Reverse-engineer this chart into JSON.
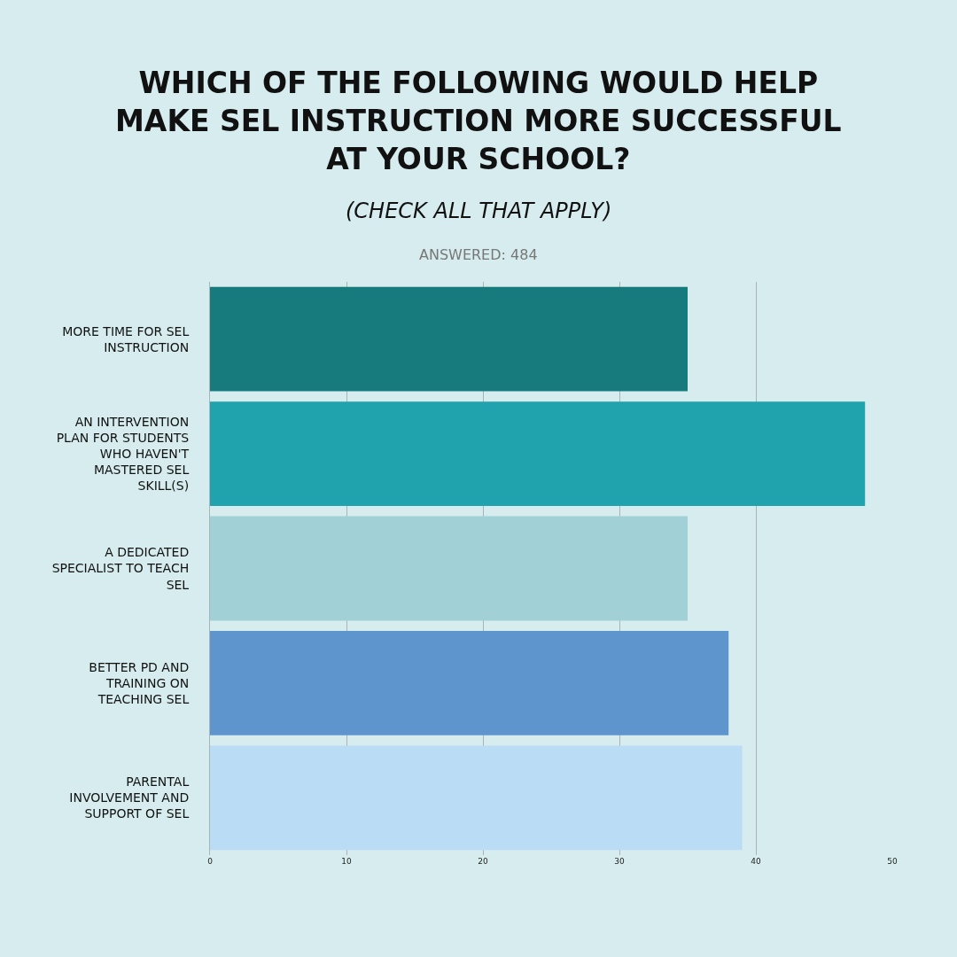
{
  "chart_data": {
    "type": "bar",
    "orientation": "horizontal",
    "title": "WHICH OF THE FOLLOWING WOULD HELP MAKE SEL INSTRUCTION MORE SUCCESSFUL AT YOUR SCHOOL?",
    "subtitle": "(CHECK ALL THAT APPLY)",
    "annotations": [
      "ANSWERED: 484"
    ],
    "categories": [
      "MORE TIME FOR SEL INSTRUCTION",
      "AN INTERVENTION PLAN FOR STUDENTS WHO HAVEN'T MASTERED SEL SKILL(S)",
      "A DEDICATED SPECIALIST TO TEACH SEL",
      "BETTER PD AND TRAINING ON TEACHING SEL",
      "PARENTAL INVOLVEMENT AND SUPPORT OF SEL"
    ],
    "values": [
      35,
      48,
      35,
      38,
      39
    ],
    "colors": [
      "#177b7e",
      "#20a3ad",
      "#a1d1d6",
      "#5e95cc",
      "#badcf5"
    ],
    "xlim": [
      0,
      50
    ],
    "xticks": [
      0,
      10,
      20,
      30,
      40,
      50
    ],
    "grid": "x"
  }
}
